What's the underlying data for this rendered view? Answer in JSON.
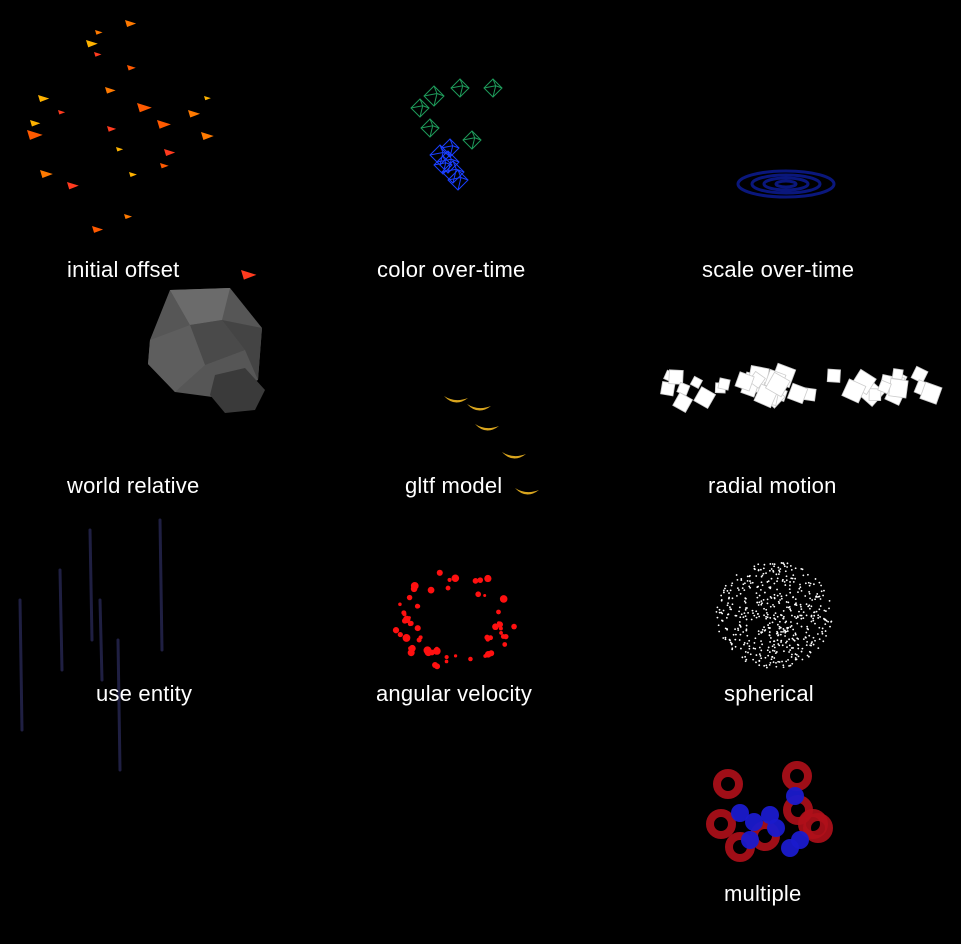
{
  "demos": [
    {
      "id": "initial-offset",
      "label": "initial offset",
      "particle": "triangle",
      "colors": [
        "#ff7a00",
        "#ffb300",
        "#ff3b1f",
        "#ff5a00"
      ]
    },
    {
      "id": "color-over-time",
      "label": "color over-time",
      "particle": "wireframe-octahedron",
      "colors": [
        "#1e9a5a",
        "#1a3fff"
      ]
    },
    {
      "id": "scale-over-time",
      "label": "scale over-time",
      "particle": "ring",
      "colors": [
        "#0b1a8a"
      ]
    },
    {
      "id": "world-relative",
      "label": "world relative",
      "particle": "low-poly-rock",
      "colors": [
        "#5a5a5a",
        "#3a3a3a"
      ]
    },
    {
      "id": "gltf-model",
      "label": "gltf model",
      "particle": "banana",
      "colors": [
        "#d9a51e"
      ]
    },
    {
      "id": "radial-motion",
      "label": "radial motion",
      "particle": "cube",
      "colors": [
        "#ffffff"
      ]
    },
    {
      "id": "use-entity",
      "label": "use entity",
      "particle": "streak",
      "colors": [
        "#23234a"
      ]
    },
    {
      "id": "angular-velocity",
      "label": "angular velocity",
      "particle": "dot",
      "colors": [
        "#ff1010"
      ]
    },
    {
      "id": "spherical",
      "label": "spherical",
      "particle": "point",
      "colors": [
        "#ffffff"
      ]
    },
    {
      "id": "multiple",
      "label": "multiple",
      "particle": "torus-and-sphere",
      "colors": [
        "#b0101a",
        "#1a1acc"
      ]
    }
  ]
}
